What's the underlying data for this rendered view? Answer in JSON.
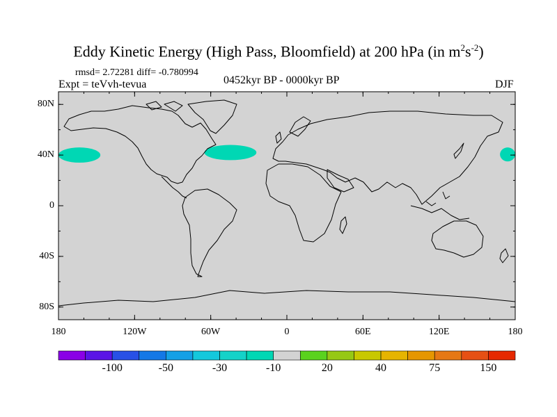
{
  "title": {
    "main": "Eddy Kinetic Energy (High Pass, Bloomfield) at 200 hPa (in m",
    "sup1": "2",
    "mid": "s",
    "sup2": "-2",
    "end": ")"
  },
  "stats": "rmsd= 2.72281 diff= -0.780994",
  "expt": "Expt = teVvh-tevua",
  "period": "0452kyr BP - 0000kyr BP",
  "season": "DJF",
  "map": {
    "lon_range": [
      -180,
      180
    ],
    "lat_range": [
      -90,
      90
    ],
    "ocean_color": "#d3d3d3",
    "coast_color": "#000000",
    "lat_ticks": [
      {
        "lat": 80,
        "label": "80N"
      },
      {
        "lat": 40,
        "label": "40N"
      },
      {
        "lat": 0,
        "label": "0"
      },
      {
        "lat": -40,
        "label": "40S"
      },
      {
        "lat": -80,
        "label": "80S"
      }
    ],
    "lon_ticks": [
      {
        "lon": -180,
        "label": "180"
      },
      {
        "lon": -120,
        "label": "120W"
      },
      {
        "lon": -60,
        "label": "60W"
      },
      {
        "lon": 0,
        "label": "0"
      },
      {
        "lon": 60,
        "label": "60E"
      },
      {
        "lon": 120,
        "label": "120E"
      },
      {
        "lon": 180,
        "label": "180"
      }
    ],
    "anomalies": [
      {
        "name": "north-pacific-anomaly-west",
        "color": "#00d7b4",
        "lon_min": -180,
        "lon_max": -147,
        "lat_min": 34,
        "lat_max": 46
      },
      {
        "name": "north-atlantic-anomaly",
        "color": "#00d7b4",
        "lon_min": -65,
        "lon_max": -24,
        "lat_min": 36,
        "lat_max": 48
      },
      {
        "name": "north-pacific-anomaly-east",
        "color": "#00d7b4",
        "lon_min": 168,
        "lon_max": 180,
        "lat_min": 35,
        "lat_max": 46
      }
    ]
  },
  "colorbar": {
    "colors": [
      "#8a00e6",
      "#5a14e6",
      "#2850e6",
      "#1478e6",
      "#14a0e6",
      "#14c8dc",
      "#14d2c8",
      "#00d7b4",
      "#d3d3d3",
      "#5ad21e",
      "#96c814",
      "#c8c800",
      "#e6b400",
      "#e69600",
      "#e67814",
      "#e65014",
      "#e62800"
    ],
    "labels": [
      {
        "index": 2,
        "text": "-100"
      },
      {
        "index": 4,
        "text": "-50"
      },
      {
        "index": 6,
        "text": "-30"
      },
      {
        "index": 8,
        "text": "-10"
      },
      {
        "index": 10,
        "text": "20"
      },
      {
        "index": 12,
        "text": "40"
      },
      {
        "index": 14,
        "text": "75"
      },
      {
        "index": 16,
        "text": "150"
      }
    ]
  }
}
